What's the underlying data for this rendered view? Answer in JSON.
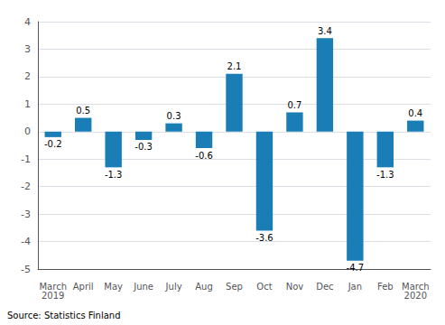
{
  "chart_data": {
    "type": "bar",
    "categories": [
      "March\n2019",
      "April",
      "May",
      "June",
      "July",
      "Aug",
      "Sep",
      "Oct",
      "Nov",
      "Dec",
      "Jan",
      "Feb",
      "March\n2020"
    ],
    "values": [
      -0.2,
      0.5,
      -1.3,
      -0.3,
      0.3,
      -0.6,
      2.1,
      -3.6,
      0.7,
      3.4,
      -4.7,
      -1.3,
      0.4
    ],
    "color": "#1a7db5",
    "ylim": [
      -5,
      4
    ],
    "yticks": [
      -5,
      -4,
      -3,
      -2,
      -1,
      0,
      1,
      2,
      3,
      4
    ],
    "grid": true,
    "data_labels": true,
    "annotations": [
      "Source: Statistics Finland"
    ]
  }
}
